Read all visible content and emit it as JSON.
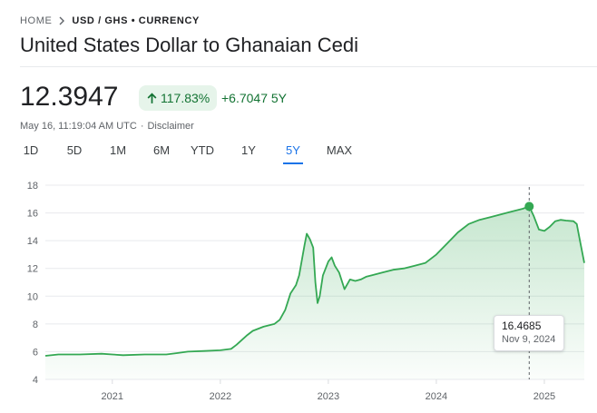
{
  "breadcrumb": {
    "home": "HOME",
    "current": "USD / GHS • CURRENCY"
  },
  "page_title": "United States Dollar to Ghanaian Cedi",
  "quote": {
    "price": "12.3947",
    "change_pct": "117.83%",
    "change_abs": "+6.7047 5Y"
  },
  "meta": {
    "timestamp": "May 16, 11:19:04 AM UTC",
    "separator": "·",
    "disclaimer": "Disclaimer"
  },
  "tabs": [
    {
      "label": "1D"
    },
    {
      "label": "5D"
    },
    {
      "label": "1M"
    },
    {
      "label": "6M"
    },
    {
      "label": "YTD"
    },
    {
      "label": "1Y"
    },
    {
      "label": "5Y",
      "active": true
    },
    {
      "label": "MAX"
    }
  ],
  "tooltip": {
    "value": "16.4685",
    "date": "Nov 9, 2024"
  },
  "colors": {
    "up": "#137333",
    "line": "#34a853",
    "accent": "#1a73e8"
  },
  "icons": {
    "breadcrumb_separator": "chevron-right-icon",
    "trend": "arrow-up-icon"
  },
  "chart_data": {
    "type": "area",
    "title": "",
    "xlabel": "",
    "ylabel": "",
    "ylim": [
      4,
      18
    ],
    "yticks": [
      4,
      6,
      8,
      10,
      12,
      14,
      16,
      18
    ],
    "xlim": [
      2020.38,
      2025.37
    ],
    "xticks": [
      2021,
      2022,
      2023,
      2024,
      2025
    ],
    "xtick_labels": [
      "2021",
      "2022",
      "2023",
      "2024",
      "2025"
    ],
    "grid": true,
    "highlight": {
      "x": 2024.86,
      "y": 16.4685
    },
    "series": [
      {
        "x": [
          2020.38,
          2020.5,
          2020.7,
          2020.9,
          2021.0,
          2021.1,
          2021.3,
          2021.5,
          2021.6,
          2021.7,
          2021.85,
          2022.0,
          2022.1,
          2022.15,
          2022.25,
          2022.3,
          2022.4,
          2022.5,
          2022.55,
          2022.6,
          2022.65,
          2022.7,
          2022.73,
          2022.78,
          2022.8,
          2022.83,
          2022.86,
          2022.88,
          2022.9,
          2022.92,
          2022.95,
          2023.0,
          2023.03,
          2023.06,
          2023.1,
          2023.15,
          2023.2,
          2023.25,
          2023.3,
          2023.35,
          2023.4,
          2023.5,
          2023.6,
          2023.7,
          2023.8,
          2023.9,
          2024.0,
          2024.1,
          2024.2,
          2024.3,
          2024.4,
          2024.5,
          2024.6,
          2024.7,
          2024.8,
          2024.86,
          2024.9,
          2024.95,
          2025.0,
          2025.05,
          2025.1,
          2025.15,
          2025.2,
          2025.27,
          2025.3,
          2025.33,
          2025.37
        ],
        "y": [
          5.7,
          5.8,
          5.8,
          5.85,
          5.8,
          5.75,
          5.8,
          5.8,
          5.9,
          6.0,
          6.05,
          6.1,
          6.2,
          6.5,
          7.2,
          7.5,
          7.8,
          8.0,
          8.3,
          9.0,
          10.2,
          10.8,
          11.5,
          13.7,
          14.5,
          14.1,
          13.5,
          11.0,
          9.5,
          10.0,
          11.5,
          12.5,
          12.8,
          12.2,
          11.7,
          10.5,
          11.2,
          11.1,
          11.2,
          11.4,
          11.5,
          11.7,
          11.9,
          12.0,
          12.2,
          12.4,
          13.0,
          13.8,
          14.6,
          15.2,
          15.5,
          15.7,
          15.9,
          16.1,
          16.3,
          16.4685,
          15.8,
          14.8,
          14.7,
          15.0,
          15.4,
          15.5,
          15.45,
          15.4,
          15.2,
          14.0,
          12.3947
        ]
      }
    ]
  }
}
